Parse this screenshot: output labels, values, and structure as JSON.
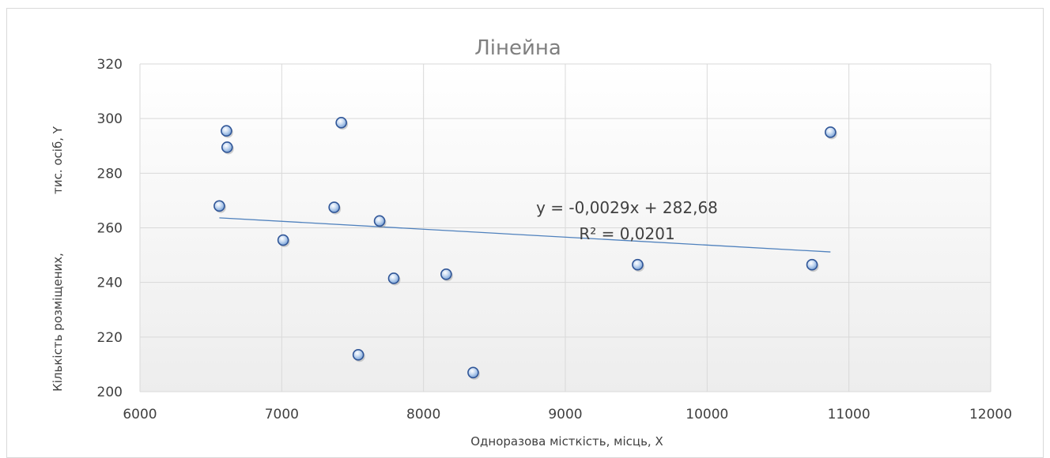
{
  "chart_data": {
    "type": "scatter",
    "title": "Лінейна",
    "xlabel": "Одноразова місткість, місць,  X",
    "ylabel_parts": [
      "Кількість розміщених,",
      "тис. осіб,  Y"
    ],
    "xlim": [
      6000,
      12000
    ],
    "ylim": [
      200,
      320
    ],
    "x_ticks": [
      "6000",
      "7000",
      "8000",
      "9000",
      "10000",
      "11000",
      "12000"
    ],
    "y_ticks": [
      "200",
      "220",
      "240",
      "260",
      "280",
      "300",
      "320"
    ],
    "grid": true,
    "points": [
      {
        "x": 6560,
        "y": 268
      },
      {
        "x": 6610,
        "y": 295.5
      },
      {
        "x": 6615,
        "y": 289.5
      },
      {
        "x": 7010,
        "y": 255.5
      },
      {
        "x": 7370,
        "y": 267.5
      },
      {
        "x": 7420,
        "y": 298.5
      },
      {
        "x": 7540,
        "y": 213.5
      },
      {
        "x": 7690,
        "y": 262.5
      },
      {
        "x": 7790,
        "y": 241.5
      },
      {
        "x": 8160,
        "y": 243
      },
      {
        "x": 8350,
        "y": 207
      },
      {
        "x": 9510,
        "y": 246.5
      },
      {
        "x": 10740,
        "y": 246.5
      },
      {
        "x": 10870,
        "y": 295
      }
    ],
    "trendline": {
      "type": "linear",
      "slope": -0.0029,
      "intercept": 282.68,
      "x_range": [
        6560,
        10870
      ],
      "color": "#4f81bd",
      "equation": "y = -0,0029x + 282,68",
      "r2": "R² = 0,0201"
    },
    "marker_color": "#4f81bd",
    "plot_gradient": [
      "#ffffff",
      "#f2f2f2"
    ]
  }
}
